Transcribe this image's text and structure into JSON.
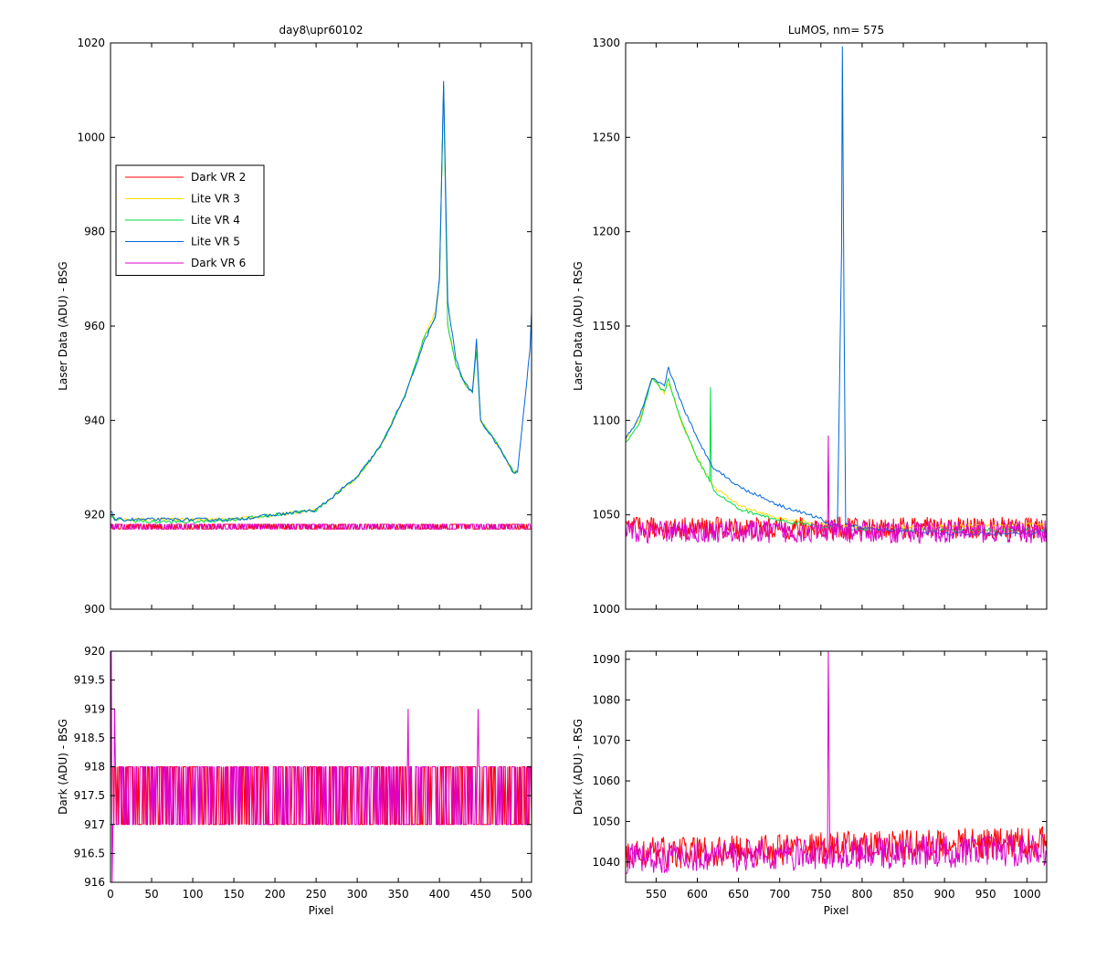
{
  "chart_data": [
    {
      "id": "tl",
      "type": "line",
      "title": "day8\\upr60102",
      "ylabel": "Laser Data (ADU) - BSG",
      "xlabel": "",
      "xlim": [
        0,
        512
      ],
      "ylim": [
        900,
        1020
      ],
      "xticks": [],
      "yticks": [
        900,
        920,
        940,
        960,
        980,
        1000,
        1020
      ],
      "legend": {
        "placement": "upper-left",
        "entries": [
          {
            "name": "Dark VR 2",
            "color": "#ff0000"
          },
          {
            "name": "Lite VR 3",
            "color": "#ffdd00"
          },
          {
            "name": "Lite VR 4",
            "color": "#00dd44"
          },
          {
            "name": "Lite VR 5",
            "color": "#0066dd"
          },
          {
            "name": "Dark VR 6",
            "color": "#dd00cc"
          }
        ]
      },
      "series": [
        {
          "name": "Dark VR 2",
          "color": "#ff0000",
          "kind": "noise",
          "x": [
            0,
            512
          ],
          "base": 917.5,
          "amp": 0.6,
          "noise_min": 917,
          "noise_max": 918
        },
        {
          "name": "Lite VR 3",
          "color": "#ffdd00",
          "kind": "curve",
          "x": [
            0,
            5,
            50,
            100,
            150,
            200,
            250,
            300,
            330,
            360,
            380,
            395,
            400,
            405,
            410,
            420,
            430,
            440,
            445,
            450,
            470,
            490,
            495
          ],
          "y": [
            920,
            919,
            919,
            919,
            919,
            920,
            921,
            928,
            935,
            946,
            957,
            963,
            970,
            1011,
            960,
            952,
            948,
            946,
            955,
            940,
            935,
            929,
            929
          ]
        },
        {
          "name": "Lite VR 4",
          "color": "#00dd44",
          "kind": "curve",
          "x": [
            0,
            5,
            50,
            100,
            150,
            200,
            250,
            300,
            330,
            360,
            380,
            395,
            400,
            405,
            410,
            420,
            430,
            440,
            445,
            450,
            470,
            490,
            495
          ],
          "y": [
            920,
            919,
            918.5,
            918.5,
            919,
            920,
            921,
            928,
            935,
            946,
            957,
            962,
            970,
            1011,
            960,
            952,
            948,
            946,
            955,
            940,
            935,
            929,
            929
          ]
        },
        {
          "name": "Lite VR 5",
          "color": "#0066dd",
          "kind": "curve",
          "x": [
            0,
            5,
            50,
            100,
            150,
            200,
            250,
            300,
            330,
            360,
            380,
            395,
            400,
            405,
            410,
            420,
            430,
            440,
            445,
            450,
            470,
            490,
            495,
            510,
            512
          ],
          "y": [
            921,
            919,
            919,
            919,
            919,
            920,
            921,
            928,
            935,
            946,
            956,
            962,
            970,
            1012,
            965,
            953,
            948,
            946,
            957,
            940,
            935,
            929,
            929,
            955,
            963
          ]
        },
        {
          "name": "Dark VR 6",
          "color": "#dd00cc",
          "kind": "noise",
          "x": [
            0,
            512
          ],
          "base": 917.5,
          "amp": 0.6,
          "noise_min": 917,
          "noise_max": 918
        }
      ]
    },
    {
      "id": "tr",
      "type": "line",
      "title": "LuMOS, nm= 575",
      "ylabel": "Laser Data (ADU) - RSG",
      "xlabel": "",
      "xlim": [
        513,
        1024
      ],
      "ylim": [
        1000,
        1300
      ],
      "xticks": [],
      "yticks": [
        1000,
        1050,
        1100,
        1150,
        1200,
        1250,
        1300
      ],
      "series": [
        {
          "name": "Dark VR 2",
          "color": "#ff0000",
          "kind": "noise",
          "x": [
            513,
            1024
          ],
          "base": 1043,
          "amp": 6
        },
        {
          "name": "Lite VR 3",
          "color": "#ffdd00",
          "kind": "curve",
          "x": [
            513,
            530,
            545,
            560,
            565,
            580,
            600,
            620,
            650,
            700,
            750,
            800,
            900,
            1000,
            1024
          ],
          "y": [
            1090,
            1100,
            1123,
            1115,
            1120,
            1100,
            1080,
            1065,
            1055,
            1048,
            1045,
            1043,
            1044,
            1045,
            1045
          ]
        },
        {
          "name": "Lite VR 4",
          "color": "#00dd44",
          "kind": "curve",
          "x": [
            513,
            530,
            545,
            560,
            565,
            580,
            600,
            615,
            616,
            617,
            620,
            650,
            700,
            750,
            800,
            900,
            1000,
            1024
          ],
          "y": [
            1088,
            1098,
            1122,
            1115,
            1122,
            1100,
            1080,
            1068,
            1117,
            1068,
            1063,
            1053,
            1047,
            1044,
            1042,
            1042,
            1042,
            1042
          ]
        },
        {
          "name": "Lite VR 5",
          "color": "#0066dd",
          "kind": "curve",
          "x": [
            513,
            530,
            545,
            560,
            565,
            580,
            600,
            620,
            650,
            700,
            750,
            760,
            770,
            775,
            776,
            778,
            780,
            800,
            900,
            1000,
            1024
          ],
          "y": [
            1090,
            1102,
            1122,
            1118,
            1128,
            1110,
            1090,
            1075,
            1065,
            1055,
            1048,
            1045,
            1045,
            1190,
            1298,
            1160,
            1045,
            1043,
            1040,
            1040,
            1041
          ]
        },
        {
          "name": "Dark VR 6",
          "color": "#dd00cc",
          "kind": "noise",
          "x": [
            513,
            1024
          ],
          "base": 1041,
          "amp": 6,
          "spikes": [
            {
              "x": 759,
              "y": 1092
            }
          ]
        }
      ]
    },
    {
      "id": "bl",
      "type": "line",
      "title": "",
      "ylabel": "Dark (ADU) - BSG",
      "xlabel": "Pixel",
      "xlim": [
        0,
        512
      ],
      "ylim": [
        916,
        920
      ],
      "xticks": [
        0,
        50,
        100,
        150,
        200,
        250,
        300,
        350,
        400,
        450,
        500
      ],
      "yticks": [
        916,
        916.5,
        917,
        917.5,
        918,
        918.5,
        919,
        919.5,
        920
      ],
      "series": [
        {
          "name": "Dark VR 2",
          "color": "#ff0000",
          "kind": "noise",
          "x": [
            0,
            512
          ],
          "base": 917.5,
          "noise_min": 917,
          "noise_max": 918
        },
        {
          "name": "Dark VR 6",
          "color": "#dd00cc",
          "kind": "noise",
          "x": [
            0,
            512
          ],
          "base": 917.5,
          "noise_min": 917,
          "noise_max": 918,
          "spikes": [
            {
              "x": 1,
              "y": 920
            },
            {
              "x": 2,
              "y": 916
            },
            {
              "x": 5,
              "y": 919
            },
            {
              "x": 362,
              "y": 919
            },
            {
              "x": 447,
              "y": 919
            }
          ]
        }
      ]
    },
    {
      "id": "br",
      "type": "line",
      "title": "",
      "ylabel": "Dark (ADU) - RSG",
      "xlabel": "Pixel",
      "xlim": [
        513,
        1024
      ],
      "ylim": [
        1035,
        1092
      ],
      "xticks": [
        550,
        600,
        650,
        700,
        750,
        800,
        850,
        900,
        950,
        1000
      ],
      "yticks": [
        1040,
        1050,
        1060,
        1070,
        1080,
        1090
      ],
      "series": [
        {
          "name": "Dark VR 2",
          "color": "#ff0000",
          "kind": "noise",
          "x": [
            513,
            1024
          ],
          "base_start": 1042,
          "base_end": 1045,
          "amp": 4
        },
        {
          "name": "Dark VR 6",
          "color": "#dd00cc",
          "kind": "noise",
          "x": [
            513,
            1024
          ],
          "base_start": 1041,
          "base_end": 1043,
          "amp": 4,
          "spikes": [
            {
              "x": 759,
              "y": 1092
            },
            {
              "x": 760,
              "y": 1066
            }
          ]
        }
      ]
    }
  ]
}
